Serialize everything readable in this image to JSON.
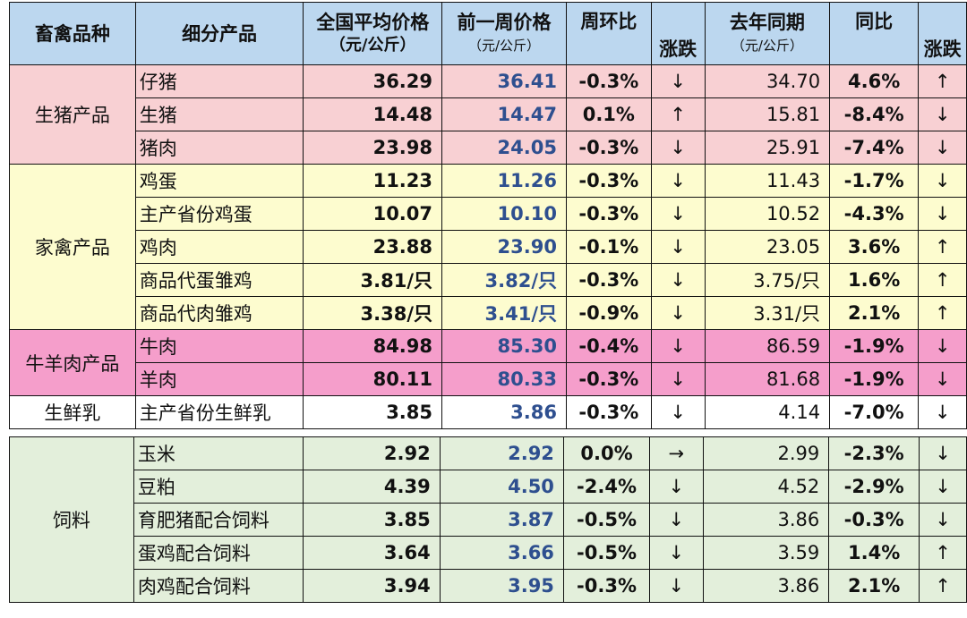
{
  "headers": {
    "category": "畜禽品种",
    "product": "细分产品",
    "avg_price_line1": "全国平均价格",
    "avg_price_line2": "（元/公斤）",
    "prev_week_line1": "前一周价格",
    "prev_week_line2": "（元/公斤）",
    "wow": "周环比",
    "trend": "涨跌",
    "last_year_line1": "去年同期",
    "last_year_line2": "（元/公斤）",
    "yoy": "同比",
    "trend2": "涨跌"
  },
  "groups": [
    {
      "name": "生猪产品",
      "color": "#f8d0d3",
      "rows": [
        {
          "product": "仔猪",
          "price": "36.29",
          "prev": "36.41",
          "wow": "-0.3%",
          "wow_arrow": "↓",
          "last_year": "34.70",
          "yoy": "4.6%",
          "yoy_arrow": "↑"
        },
        {
          "product": "生猪",
          "price": "14.48",
          "prev": "14.47",
          "wow": "0.1%",
          "wow_arrow": "↑",
          "last_year": "15.81",
          "yoy": "-8.4%",
          "yoy_arrow": "↓"
        },
        {
          "product": "猪肉",
          "price": "23.98",
          "prev": "24.05",
          "wow": "-0.3%",
          "wow_arrow": "↓",
          "last_year": "25.91",
          "yoy": "-7.4%",
          "yoy_arrow": "↓"
        }
      ]
    },
    {
      "name": "家禽产品",
      "color": "#fdfccf",
      "rows": [
        {
          "product": "鸡蛋",
          "price": "11.23",
          "prev": "11.26",
          "wow": "-0.3%",
          "wow_arrow": "↓",
          "last_year": "11.43",
          "yoy": "-1.7%",
          "yoy_arrow": "↓"
        },
        {
          "product": "主产省份鸡蛋",
          "price": "10.07",
          "prev": "10.10",
          "wow": "-0.3%",
          "wow_arrow": "↓",
          "last_year": "10.52",
          "yoy": "-4.3%",
          "yoy_arrow": "↓"
        },
        {
          "product": "鸡肉",
          "price": "23.88",
          "prev": "23.90",
          "wow": "-0.1%",
          "wow_arrow": "↓",
          "last_year": "23.05",
          "yoy": "3.6%",
          "yoy_arrow": "↑"
        },
        {
          "product": "商品代蛋雏鸡",
          "price": "3.81/只",
          "prev": "3.82/只",
          "wow": "-0.3%",
          "wow_arrow": "↓",
          "last_year": "3.75/只",
          "yoy": "1.6%",
          "yoy_arrow": "↑"
        },
        {
          "product": "商品代肉雏鸡",
          "price": "3.38/只",
          "prev": "3.41/只",
          "wow": "-0.9%",
          "wow_arrow": "↓",
          "last_year": "3.31/只",
          "yoy": "2.1%",
          "yoy_arrow": "↑"
        }
      ]
    },
    {
      "name": "牛羊肉产品",
      "color": "#f59ecb",
      "rows": [
        {
          "product": "牛肉",
          "price": "84.98",
          "prev": "85.30",
          "wow": "-0.4%",
          "wow_arrow": "↓",
          "last_year": "86.59",
          "yoy": "-1.9%",
          "yoy_arrow": "↓"
        },
        {
          "product": "羊肉",
          "price": "80.11",
          "prev": "80.33",
          "wow": "-0.3%",
          "wow_arrow": "↓",
          "last_year": "81.68",
          "yoy": "-1.9%",
          "yoy_arrow": "↓"
        }
      ]
    },
    {
      "name": "生鲜乳",
      "color": "#ffffff",
      "rows": [
        {
          "product": "主产省份生鲜乳",
          "price": "3.85",
          "prev": "3.86",
          "wow": "-0.3%",
          "wow_arrow": "↓",
          "last_year": "4.14",
          "yoy": "-7.0%",
          "yoy_arrow": "↓"
        }
      ]
    }
  ],
  "feed": {
    "name": "饲料",
    "color": "#e3efdb",
    "rows": [
      {
        "product": "玉米",
        "price": "2.92",
        "prev": "2.92",
        "wow": "0.0%",
        "wow_arrow": "→",
        "last_year": "2.99",
        "yoy": "-2.3%",
        "yoy_arrow": "↓"
      },
      {
        "product": "豆粕",
        "price": "4.39",
        "prev": "4.50",
        "wow": "-2.4%",
        "wow_arrow": "↓",
        "last_year": "4.52",
        "yoy": "-2.9%",
        "yoy_arrow": "↓"
      },
      {
        "product": "育肥猪配合饲料",
        "price": "3.85",
        "prev": "3.87",
        "wow": "-0.5%",
        "wow_arrow": "↓",
        "last_year": "3.86",
        "yoy": "-0.3%",
        "yoy_arrow": "↓"
      },
      {
        "product": "蛋鸡配合饲料",
        "price": "3.64",
        "prev": "3.66",
        "wow": "-0.5%",
        "wow_arrow": "↓",
        "last_year": "3.59",
        "yoy": "1.4%",
        "yoy_arrow": "↑"
      },
      {
        "product": "肉鸡配合饲料",
        "price": "3.94",
        "prev": "3.95",
        "wow": "-0.3%",
        "wow_arrow": "↓",
        "last_year": "3.86",
        "yoy": "2.1%",
        "yoy_arrow": "↑"
      }
    ]
  },
  "colors": {
    "up": "#e0161b",
    "down": "#1fa845",
    "flat": "#111111",
    "prev_price": "#2e4f8f",
    "header_bg": "#bcd7ef"
  }
}
